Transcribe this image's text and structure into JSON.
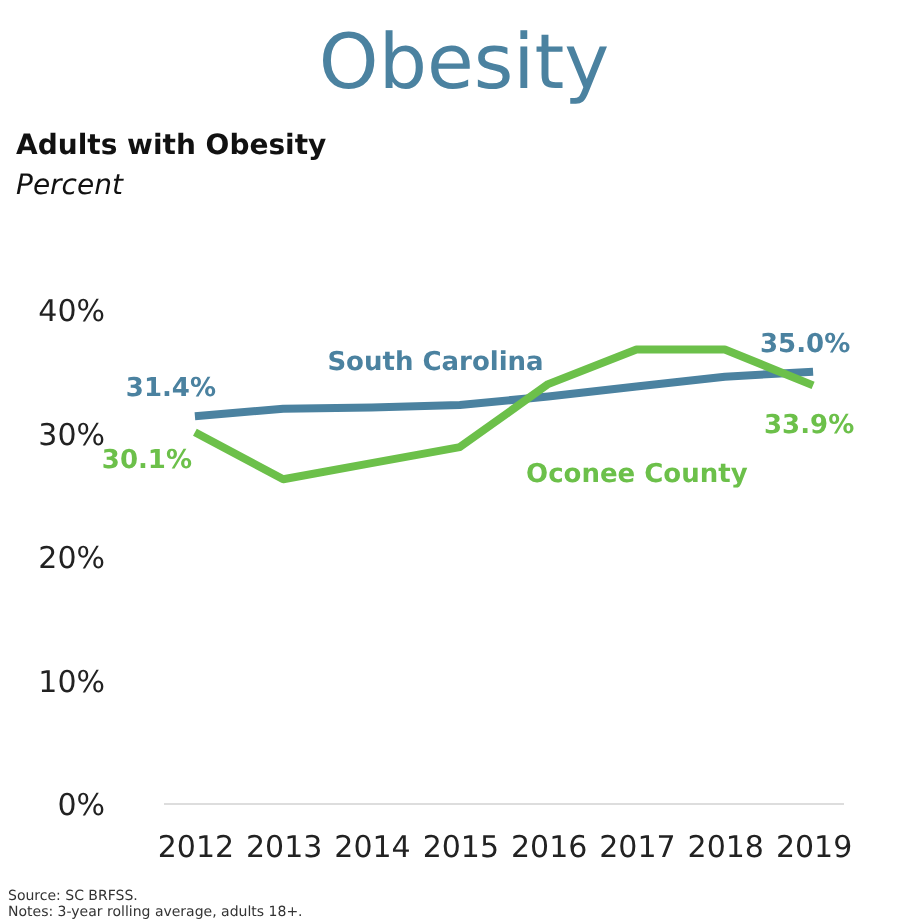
{
  "chart_data": {
    "type": "line",
    "title": "Obesity",
    "subtitle": "Adults with Obesity",
    "ylabel": "Percent",
    "categories": [
      "2012",
      "2013",
      "2014",
      "2015",
      "2016",
      "2017",
      "2018",
      "2019"
    ],
    "series": [
      {
        "name": "South Carolina",
        "color": "#4b82a0",
        "values": [
          31.4,
          32.0,
          32.1,
          32.3,
          33.0,
          33.8,
          34.6,
          35.0
        ],
        "value_labels": [
          "31.4%",
          null,
          null,
          null,
          null,
          null,
          null,
          "35.0%"
        ]
      },
      {
        "name": "Oconee County",
        "color": "#6cc04a",
        "values": [
          30.1,
          26.3,
          27.6,
          28.9,
          34.0,
          36.8,
          36.8,
          33.9
        ],
        "value_labels": [
          "30.1%",
          null,
          null,
          null,
          null,
          null,
          null,
          "33.9%"
        ]
      }
    ],
    "ylim": [
      0,
      40
    ],
    "yticks": [
      {
        "value": 0,
        "label": "0%"
      },
      {
        "value": 10,
        "label": "10%"
      },
      {
        "value": 20,
        "label": "20%"
      },
      {
        "value": 30,
        "label": "30%"
      },
      {
        "value": 40,
        "label": "40%"
      }
    ],
    "grid": false,
    "legend": false,
    "marker": "none",
    "line_style": "solid",
    "annotations": [
      "Source: SC BRFSS.",
      "Notes: 3-year rolling average, adults 18+."
    ]
  }
}
